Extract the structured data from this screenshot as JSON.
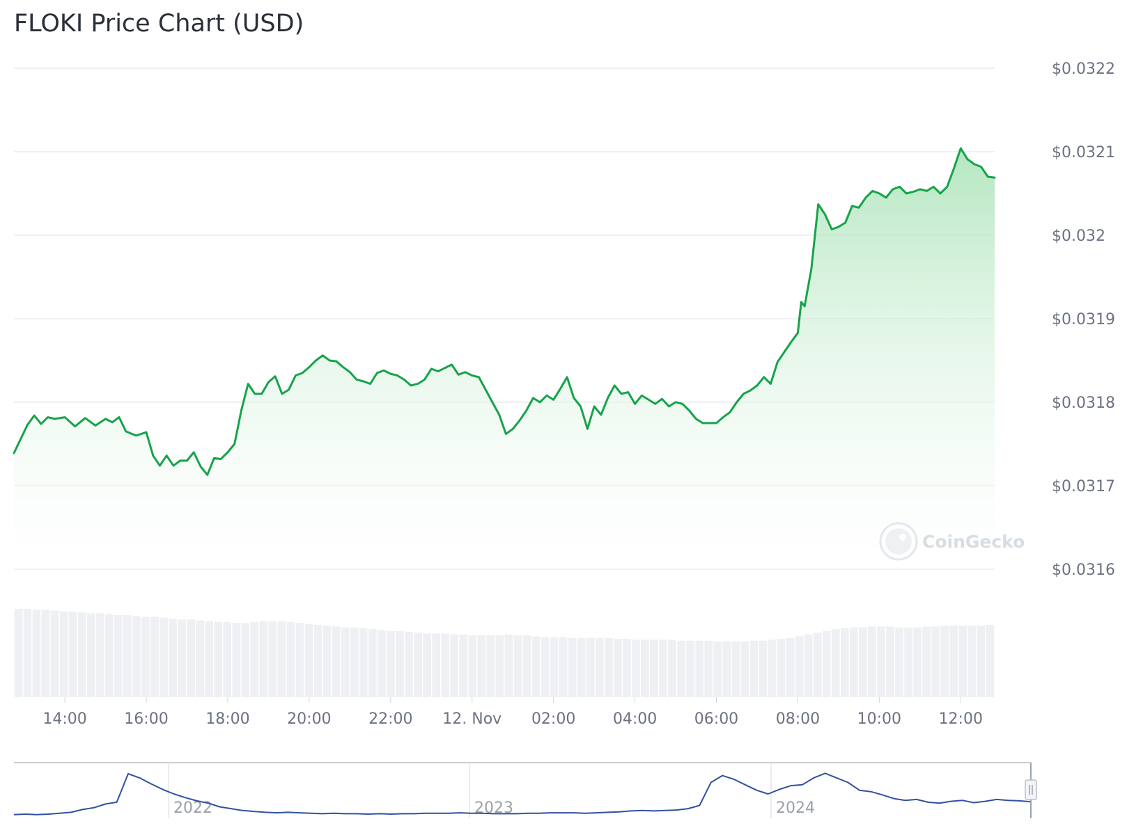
{
  "chart_data": {
    "type": "area",
    "title": "FLOKI Price Chart (USD)",
    "currency": "USD",
    "watermark": "CoinGecko",
    "colors": {
      "line": "#16a34a",
      "fill_top": "#a7e2b5",
      "volume": "#eef0f3",
      "navigator_line": "#3150a0",
      "grid": "#e6e8eb"
    },
    "y_axis": {
      "min": 0.0316,
      "max": 0.0322,
      "ticks": [
        {
          "value": 0.0322,
          "label": "$0.0322"
        },
        {
          "value": 0.0321,
          "label": "$0.0321"
        },
        {
          "value": 0.032,
          "label": "$0.032"
        },
        {
          "value": 0.0319,
          "label": "$0.0319"
        },
        {
          "value": 0.0318,
          "label": "$0.0318"
        },
        {
          "value": 0.0317,
          "label": "$0.0317"
        },
        {
          "value": 0.0316,
          "label": "$0.0316"
        }
      ]
    },
    "x_axis": {
      "start": "2024-11-11 12:45",
      "end": "2024-11-12 12:50",
      "ticks": [
        {
          "t": "2024-11-11 14:00",
          "label": "14:00"
        },
        {
          "t": "2024-11-11 16:00",
          "label": "16:00"
        },
        {
          "t": "2024-11-11 18:00",
          "label": "18:00"
        },
        {
          "t": "2024-11-11 20:00",
          "label": "20:00"
        },
        {
          "t": "2024-11-11 22:00",
          "label": "22:00"
        },
        {
          "t": "2024-11-12 00:00",
          "label": "12. Nov"
        },
        {
          "t": "2024-11-12 02:00",
          "label": "02:00"
        },
        {
          "t": "2024-11-12 04:00",
          "label": "04:00"
        },
        {
          "t": "2024-11-12 06:00",
          "label": "06:00"
        },
        {
          "t": "2024-11-12 08:00",
          "label": "08:00"
        },
        {
          "t": "2024-11-12 10:00",
          "label": "10:00"
        },
        {
          "t": "2024-11-12 12:00",
          "label": "12:00"
        }
      ]
    },
    "series": [
      {
        "points": [
          [
            "2024-11-11 12:45",
            0.031739
          ],
          [
            "2024-11-11 13:05",
            0.031773
          ],
          [
            "2024-11-11 13:15",
            0.031784
          ],
          [
            "2024-11-11 13:25",
            0.031774
          ],
          [
            "2024-11-11 13:35",
            0.031782
          ],
          [
            "2024-11-11 13:45",
            0.03178
          ],
          [
            "2024-11-11 14:00",
            0.031782
          ],
          [
            "2024-11-11 14:15",
            0.031771
          ],
          [
            "2024-11-11 14:30",
            0.031781
          ],
          [
            "2024-11-11 14:45",
            0.031772
          ],
          [
            "2024-11-11 15:00",
            0.03178
          ],
          [
            "2024-11-11 15:10",
            0.031776
          ],
          [
            "2024-11-11 15:20",
            0.031782
          ],
          [
            "2024-11-11 15:30",
            0.031765
          ],
          [
            "2024-11-11 15:45",
            0.03176
          ],
          [
            "2024-11-11 16:00",
            0.031764
          ],
          [
            "2024-11-11 16:10",
            0.031736
          ],
          [
            "2024-11-11 16:20",
            0.031724
          ],
          [
            "2024-11-11 16:30",
            0.031736
          ],
          [
            "2024-11-11 16:40",
            0.031724
          ],
          [
            "2024-11-11 16:50",
            0.03173
          ],
          [
            "2024-11-11 17:00",
            0.03173
          ],
          [
            "2024-11-11 17:10",
            0.03174
          ],
          [
            "2024-11-11 17:20",
            0.031723
          ],
          [
            "2024-11-11 17:30",
            0.031713
          ],
          [
            "2024-11-11 17:40",
            0.031733
          ],
          [
            "2024-11-11 17:50",
            0.031732
          ],
          [
            "2024-11-11 18:00",
            0.03174
          ],
          [
            "2024-11-11 18:10",
            0.03175
          ],
          [
            "2024-11-11 18:20",
            0.03179
          ],
          [
            "2024-11-11 18:30",
            0.031822
          ],
          [
            "2024-11-11 18:40",
            0.03181
          ],
          [
            "2024-11-11 18:50",
            0.03181
          ],
          [
            "2024-11-11 19:00",
            0.031824
          ],
          [
            "2024-11-11 19:10",
            0.031831
          ],
          [
            "2024-11-11 19:20",
            0.03181
          ],
          [
            "2024-11-11 19:30",
            0.031815
          ],
          [
            "2024-11-11 19:40",
            0.031832
          ],
          [
            "2024-11-11 19:50",
            0.031835
          ],
          [
            "2024-11-11 20:00",
            0.031842
          ],
          [
            "2024-11-11 20:10",
            0.03185
          ],
          [
            "2024-11-11 20:20",
            0.031856
          ],
          [
            "2024-11-11 20:30",
            0.03185
          ],
          [
            "2024-11-11 20:40",
            0.031849
          ],
          [
            "2024-11-11 20:50",
            0.031842
          ],
          [
            "2024-11-11 21:00",
            0.031836
          ],
          [
            "2024-11-11 21:10",
            0.031827
          ],
          [
            "2024-11-11 21:20",
            0.031825
          ],
          [
            "2024-11-11 21:30",
            0.031822
          ],
          [
            "2024-11-11 21:40",
            0.031835
          ],
          [
            "2024-11-11 21:50",
            0.031838
          ],
          [
            "2024-11-11 22:00",
            0.031834
          ],
          [
            "2024-11-11 22:10",
            0.031832
          ],
          [
            "2024-11-11 22:20",
            0.031827
          ],
          [
            "2024-11-11 22:30",
            0.03182
          ],
          [
            "2024-11-11 22:40",
            0.031822
          ],
          [
            "2024-11-11 22:50",
            0.031827
          ],
          [
            "2024-11-11 23:00",
            0.03184
          ],
          [
            "2024-11-11 23:10",
            0.031837
          ],
          [
            "2024-11-11 23:20",
            0.031841
          ],
          [
            "2024-11-11 23:30",
            0.031845
          ],
          [
            "2024-11-11 23:40",
            0.031833
          ],
          [
            "2024-11-11 23:50",
            0.031836
          ],
          [
            "2024-11-12 00:00",
            0.031832
          ],
          [
            "2024-11-12 00:10",
            0.03183
          ],
          [
            "2024-11-12 00:20",
            0.031815
          ],
          [
            "2024-11-12 00:30",
            0.0318
          ],
          [
            "2024-11-12 00:40",
            0.031785
          ],
          [
            "2024-11-12 00:50",
            0.031762
          ],
          [
            "2024-11-12 01:00",
            0.031768
          ],
          [
            "2024-11-12 01:10",
            0.031778
          ],
          [
            "2024-11-12 01:20",
            0.03179
          ],
          [
            "2024-11-12 01:30",
            0.031805
          ],
          [
            "2024-11-12 01:40",
            0.0318
          ],
          [
            "2024-11-12 01:50",
            0.031808
          ],
          [
            "2024-11-12 02:00",
            0.031803
          ],
          [
            "2024-11-12 02:10",
            0.031816
          ],
          [
            "2024-11-12 02:20",
            0.03183
          ],
          [
            "2024-11-12 02:30",
            0.031805
          ],
          [
            "2024-11-12 02:40",
            0.031795
          ],
          [
            "2024-11-12 02:50",
            0.031768
          ],
          [
            "2024-11-12 03:00",
            0.031795
          ],
          [
            "2024-11-12 03:10",
            0.031785
          ],
          [
            "2024-11-12 03:20",
            0.031805
          ],
          [
            "2024-11-12 03:30",
            0.03182
          ],
          [
            "2024-11-12 03:40",
            0.03181
          ],
          [
            "2024-11-12 03:50",
            0.031812
          ],
          [
            "2024-11-12 04:00",
            0.031798
          ],
          [
            "2024-11-12 04:10",
            0.031808
          ],
          [
            "2024-11-12 04:20",
            0.031803
          ],
          [
            "2024-11-12 04:30",
            0.031798
          ],
          [
            "2024-11-12 04:40",
            0.031804
          ],
          [
            "2024-11-12 04:50",
            0.031795
          ],
          [
            "2024-11-12 05:00",
            0.0318
          ],
          [
            "2024-11-12 05:10",
            0.031798
          ],
          [
            "2024-11-12 05:20",
            0.03179
          ],
          [
            "2024-11-12 05:30",
            0.03178
          ],
          [
            "2024-11-12 05:40",
            0.031775
          ],
          [
            "2024-11-12 05:50",
            0.031775
          ],
          [
            "2024-11-12 06:00",
            0.031775
          ],
          [
            "2024-11-12 06:10",
            0.031782
          ],
          [
            "2024-11-12 06:20",
            0.031788
          ],
          [
            "2024-11-12 06:30",
            0.0318
          ],
          [
            "2024-11-12 06:40",
            0.03181
          ],
          [
            "2024-11-12 06:50",
            0.031814
          ],
          [
            "2024-11-12 07:00",
            0.03182
          ],
          [
            "2024-11-12 07:10",
            0.03183
          ],
          [
            "2024-11-12 07:20",
            0.031822
          ],
          [
            "2024-11-12 07:30",
            0.031848
          ],
          [
            "2024-11-12 07:40",
            0.03186
          ],
          [
            "2024-11-12 07:50",
            0.031872
          ],
          [
            "2024-11-12 08:00",
            0.031883
          ],
          [
            "2024-11-12 08:05",
            0.03192
          ],
          [
            "2024-11-12 08:10",
            0.031915
          ],
          [
            "2024-11-12 08:20",
            0.03196
          ],
          [
            "2024-11-12 08:30",
            0.032037
          ],
          [
            "2024-11-12 08:40",
            0.032025
          ],
          [
            "2024-11-12 08:50",
            0.032007
          ],
          [
            "2024-11-12 09:00",
            0.03201
          ],
          [
            "2024-11-12 09:10",
            0.032015
          ],
          [
            "2024-11-12 09:20",
            0.032035
          ],
          [
            "2024-11-12 09:30",
            0.032033
          ],
          [
            "2024-11-12 09:40",
            0.032045
          ],
          [
            "2024-11-12 09:50",
            0.032053
          ],
          [
            "2024-11-12 10:00",
            0.03205
          ],
          [
            "2024-11-12 10:10",
            0.032045
          ],
          [
            "2024-11-12 10:20",
            0.032055
          ],
          [
            "2024-11-12 10:30",
            0.032058
          ],
          [
            "2024-11-12 10:40",
            0.03205
          ],
          [
            "2024-11-12 10:50",
            0.032052
          ],
          [
            "2024-11-12 11:00",
            0.032055
          ],
          [
            "2024-11-12 11:10",
            0.032053
          ],
          [
            "2024-11-12 11:20",
            0.032058
          ],
          [
            "2024-11-12 11:30",
            0.03205
          ],
          [
            "2024-11-12 11:40",
            0.032058
          ],
          [
            "2024-11-12 11:50",
            0.03208
          ],
          [
            "2024-11-12 12:00",
            0.032104
          ],
          [
            "2024-11-12 12:10",
            0.032091
          ],
          [
            "2024-11-12 12:20",
            0.032085
          ],
          [
            "2024-11-12 12:30",
            0.032082
          ],
          [
            "2024-11-12 12:40",
            0.03207
          ],
          [
            "2024-11-12 12:50",
            0.032069
          ]
        ]
      }
    ],
    "volume": [
      100,
      100,
      99,
      99,
      98,
      97,
      97,
      96,
      95,
      95,
      94,
      93,
      93,
      92,
      91,
      91,
      90,
      89,
      88,
      88,
      87,
      86,
      85,
      85,
      84,
      84,
      85,
      86,
      86,
      86,
      85,
      84,
      83,
      82,
      81,
      80,
      79,
      79,
      78,
      77,
      76,
      75,
      75,
      74,
      73,
      72,
      72,
      72,
      71,
      71,
      70,
      70,
      70,
      70,
      71,
      70,
      70,
      69,
      68,
      68,
      68,
      67,
      67,
      67,
      67,
      67,
      66,
      66,
      65,
      65,
      65,
      65,
      65,
      64,
      64,
      64,
      64,
      63,
      63,
      63,
      63,
      64,
      64,
      65,
      66,
      67,
      69,
      71,
      73,
      75,
      77,
      78,
      79,
      79,
      80,
      80,
      80,
      79,
      79,
      79,
      80,
      80,
      81,
      81,
      81,
      81,
      81,
      82
    ],
    "navigator": {
      "labels": [
        "2022",
        "2023",
        "2024"
      ],
      "series": [
        0.05,
        0.06,
        0.05,
        0.06,
        0.08,
        0.1,
        0.16,
        0.2,
        0.28,
        0.32,
        0.94,
        0.85,
        0.72,
        0.6,
        0.5,
        0.42,
        0.35,
        0.3,
        0.22,
        0.18,
        0.14,
        0.12,
        0.1,
        0.09,
        0.1,
        0.09,
        0.08,
        0.07,
        0.08,
        0.07,
        0.07,
        0.06,
        0.07,
        0.06,
        0.07,
        0.07,
        0.08,
        0.08,
        0.08,
        0.09,
        0.08,
        0.08,
        0.07,
        0.07,
        0.07,
        0.08,
        0.08,
        0.09,
        0.09,
        0.09,
        0.08,
        0.09,
        0.1,
        0.11,
        0.13,
        0.14,
        0.13,
        0.14,
        0.15,
        0.18,
        0.25,
        0.75,
        0.9,
        0.82,
        0.7,
        0.58,
        0.5,
        0.6,
        0.68,
        0.7,
        0.85,
        0.95,
        0.85,
        0.75,
        0.58,
        0.55,
        0.48,
        0.4,
        0.36,
        0.38,
        0.32,
        0.3,
        0.34,
        0.36,
        0.31,
        0.34,
        0.38,
        0.36,
        0.35,
        0.33
      ]
    }
  }
}
